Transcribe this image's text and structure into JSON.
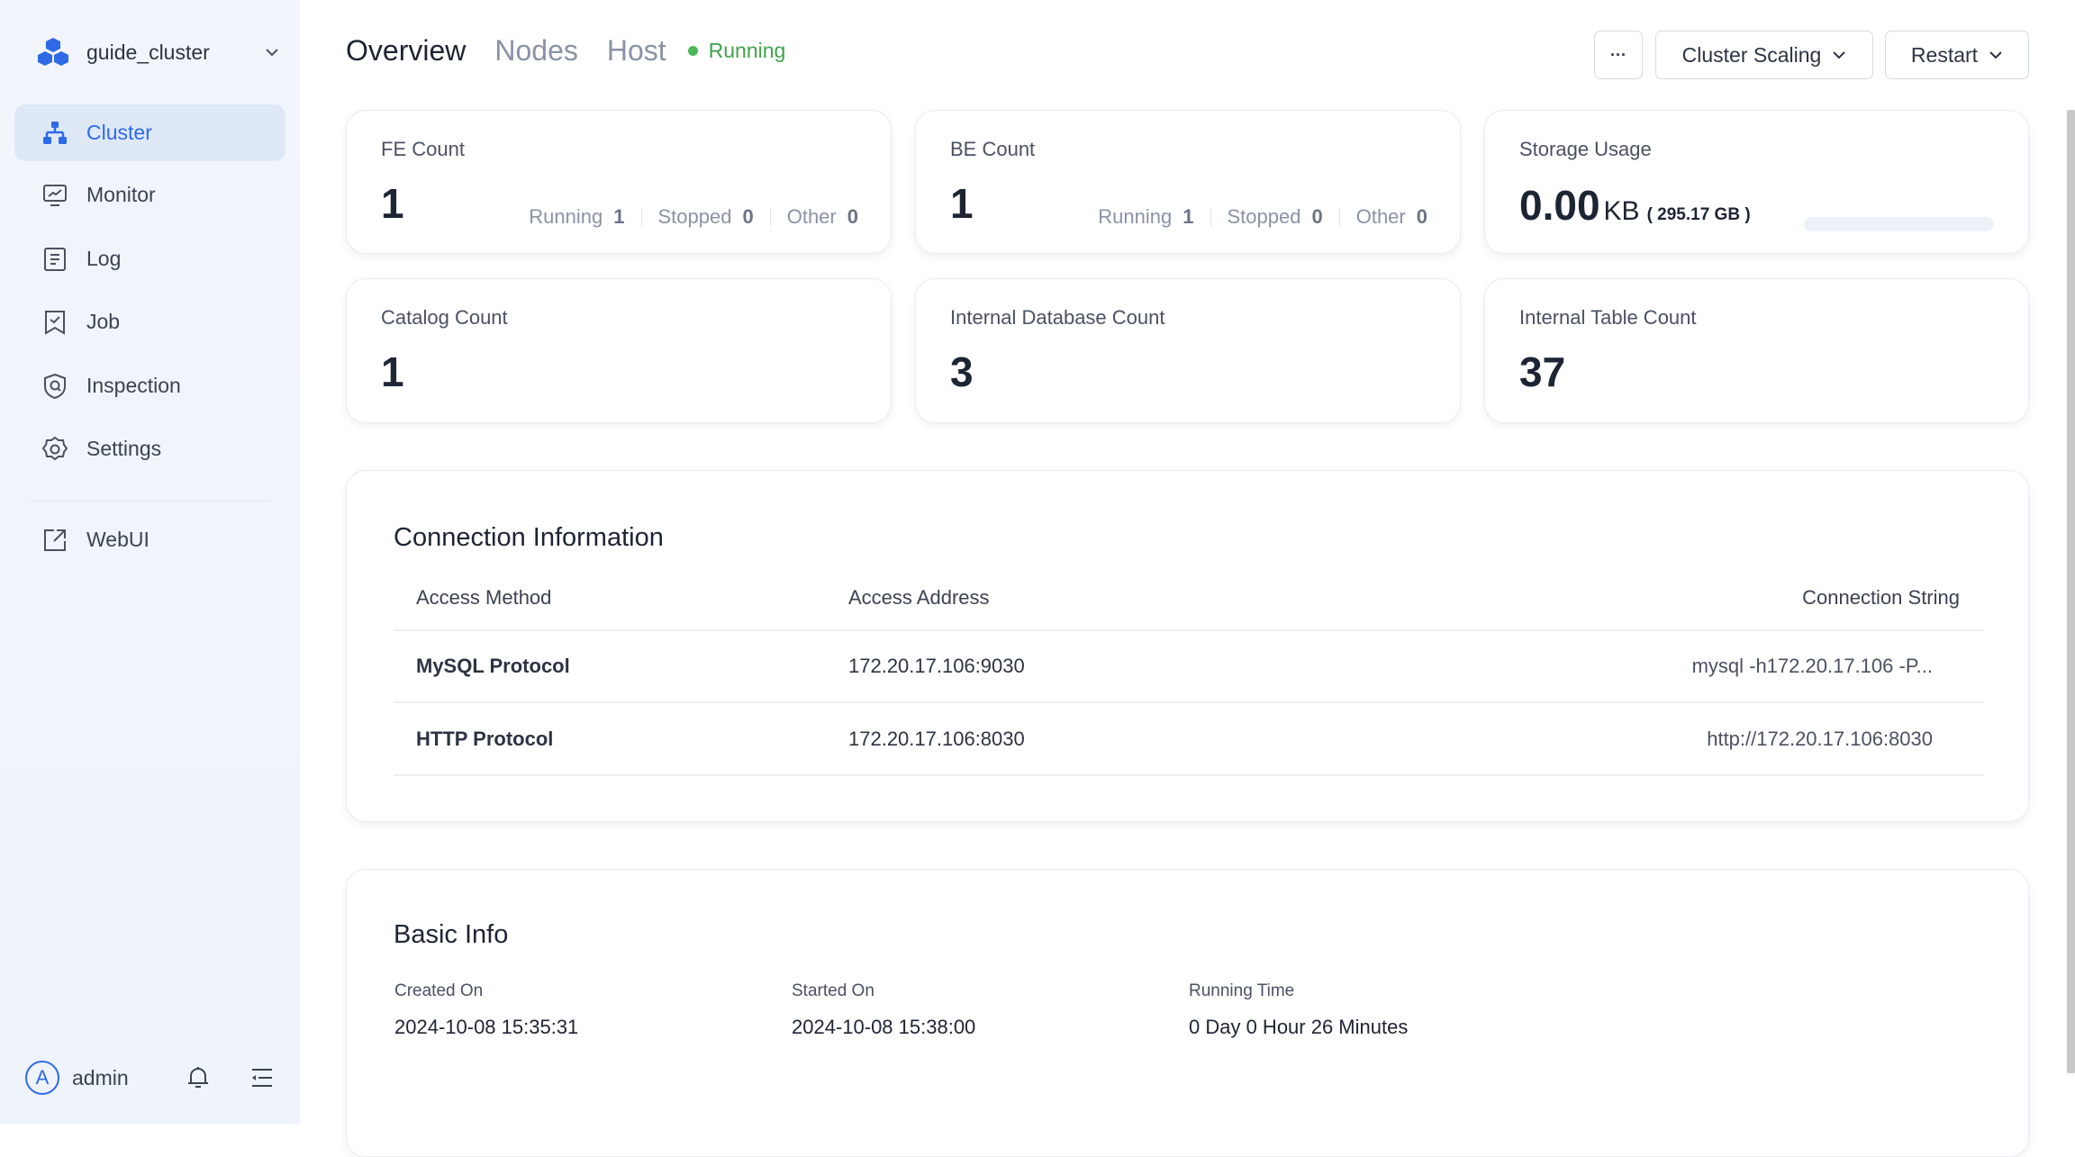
{
  "sidebar": {
    "cluster_name": "guide_cluster",
    "items": [
      {
        "label": "Cluster",
        "icon": "cluster-icon",
        "active": true
      },
      {
        "label": "Monitor",
        "icon": "monitor-icon"
      },
      {
        "label": "Log",
        "icon": "log-icon"
      },
      {
        "label": "Job",
        "icon": "job-icon"
      },
      {
        "label": "Inspection",
        "icon": "inspection-icon"
      },
      {
        "label": "Settings",
        "icon": "gear-icon"
      }
    ],
    "webui": {
      "label": "WebUI",
      "icon": "external-link-icon"
    },
    "user": {
      "initial": "A",
      "name": "admin"
    }
  },
  "header": {
    "tabs": [
      {
        "label": "Overview",
        "active": true
      },
      {
        "label": "Nodes"
      },
      {
        "label": "Host"
      }
    ],
    "status": "Running",
    "status_color": "#4cb85a",
    "more_label": "···",
    "scaling_label": "Cluster Scaling",
    "restart_label": "Restart"
  },
  "cards": {
    "fe": {
      "label": "FE Count",
      "value": "1",
      "running_label": "Running",
      "running": "1",
      "stopped_label": "Stopped",
      "stopped": "0",
      "other_label": "Other",
      "other": "0"
    },
    "be": {
      "label": "BE Count",
      "value": "1",
      "running_label": "Running",
      "running": "1",
      "stopped_label": "Stopped",
      "stopped": "0",
      "other_label": "Other",
      "other": "0"
    },
    "storage": {
      "label": "Storage Usage",
      "value": "0.00",
      "unit": "KB",
      "total": "( 295.17 GB )",
      "usage_percent": 0
    },
    "catalog": {
      "label": "Catalog Count",
      "value": "1"
    },
    "database": {
      "label": "Internal Database Count",
      "value": "3"
    },
    "table": {
      "label": "Internal Table Count",
      "value": "37"
    }
  },
  "connection": {
    "title": "Connection Information",
    "columns": [
      "Access Method",
      "Access Address",
      "Connection String"
    ],
    "rows": [
      [
        "MySQL Protocol",
        "172.20.17.106:9030",
        "mysql -h172.20.17.106 -P..."
      ],
      [
        "HTTP Protocol",
        "172.20.17.106:8030",
        "http://172.20.17.106:8030"
      ]
    ]
  },
  "basic": {
    "title": "Basic Info",
    "fields": [
      {
        "label": "Created On",
        "value": "2024-10-08 15:35:31"
      },
      {
        "label": "Started On",
        "value": "2024-10-08 15:38:00"
      },
      {
        "label": "Running Time",
        "value": "0 Day 0 Hour 26 Minutes"
      }
    ]
  },
  "colors": {
    "accent": "#2e6ae6",
    "running": "#4cb85a"
  }
}
